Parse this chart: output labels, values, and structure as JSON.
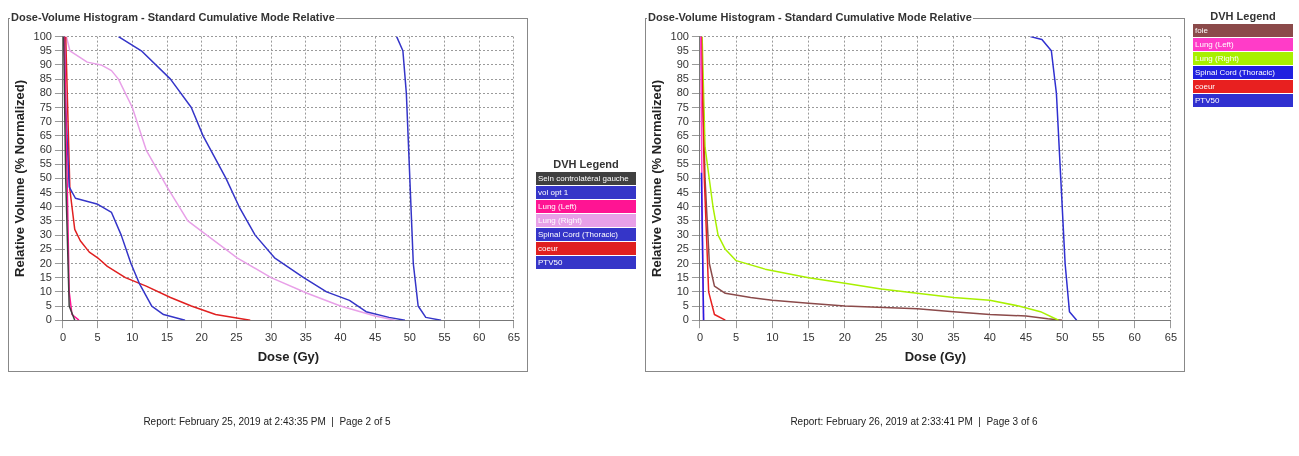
{
  "chart_data": [
    {
      "type": "line",
      "title": "Dose-Volume Histogram - Standard Cumulative Mode Relative",
      "xlabel": "Dose (Gy)",
      "ylabel": "Relative Volume (% Normalized)",
      "legend_title": "DVH Legend",
      "legend": "right",
      "grid": true,
      "xlim": [
        0,
        65
      ],
      "xticks": [
        0,
        5,
        10,
        15,
        20,
        25,
        30,
        35,
        40,
        45,
        50,
        55,
        60,
        65
      ],
      "ylim": [
        0,
        100
      ],
      "yticks": [
        0,
        5,
        10,
        15,
        20,
        25,
        30,
        35,
        40,
        45,
        50,
        55,
        60,
        65,
        70,
        75,
        80,
        85,
        90,
        95,
        100
      ],
      "annotations": [
        "Report: February 25, 2019 at 2:43:35 PM  |  Page 2 of 5"
      ],
      "series": [
        {
          "name": "Sein controlatéral gauche",
          "color": "#404040",
          "x": [
            0.1,
            0.4,
            0.9,
            1.7
          ],
          "values": [
            100,
            50,
            5,
            0
          ]
        },
        {
          "name": "vol opt 1",
          "color": "#3535c8",
          "x": [
            8,
            11.3,
            15.5,
            18.5,
            20.2,
            23.5,
            25.4,
            27.7,
            30.5,
            34.7,
            38,
            41.3,
            43.7,
            47,
            49.3
          ],
          "values": [
            100,
            95,
            85,
            75,
            65,
            50,
            40,
            30,
            22,
            15,
            10,
            7,
            3,
            1,
            0
          ]
        },
        {
          "name": "Lung (Left)",
          "color": "#ff1493",
          "x": [
            0.2,
            0.6,
            0.9,
            1.3,
            2.3
          ],
          "values": [
            100,
            50,
            10,
            2,
            0
          ]
        },
        {
          "name": "Lung (Right)",
          "color": "#e8a0e8",
          "x": [
            0.5,
            1,
            3.5,
            5.5,
            7,
            8,
            10,
            12,
            15,
            18,
            20.2,
            25.1,
            30,
            35.2,
            40,
            45,
            47.9
          ],
          "values": [
            100,
            95,
            91,
            90,
            88,
            85,
            75,
            60,
            47,
            35,
            31,
            22,
            15,
            9.5,
            5,
            1.5,
            0
          ]
        },
        {
          "name": "Spinal Cord (Thoracic)",
          "color": "#3535c8",
          "x": [
            0.2,
            0.4,
            0.9,
            1.8,
            4.9,
            7,
            8.4,
            9.8,
            11,
            12.8,
            14.5,
            17.6
          ],
          "values": [
            100,
            75,
            47,
            43,
            41,
            38,
            30,
            20,
            13,
            5,
            2,
            0
          ]
        },
        {
          "name": "coeur",
          "color": "#e02020",
          "x": [
            0.4,
            1,
            1.7,
            2.5,
            3.8,
            5,
            6.4,
            9,
            12,
            15.5,
            18.5,
            22,
            27
          ],
          "values": [
            100,
            46,
            32,
            28,
            24,
            22,
            19,
            15,
            12,
            8,
            5,
            2,
            0
          ]
        },
        {
          "name": "PTV50",
          "color": "#3535c8",
          "x": [
            48.1,
            49,
            49.5,
            50,
            50.5,
            51.2,
            52.3,
            54.5
          ],
          "values": [
            100,
            95,
            80,
            50,
            20,
            5,
            1,
            0
          ]
        }
      ]
    },
    {
      "type": "line",
      "title": "Dose-Volume Histogram - Standard Cumulative Mode Relative",
      "xlabel": "Dose (Gy)",
      "ylabel": "Relative Volume (% Normalized)",
      "legend_title": "DVH Legend",
      "legend": "top right",
      "grid": true,
      "xlim": [
        0,
        65
      ],
      "xticks": [
        0,
        5,
        10,
        15,
        20,
        25,
        30,
        35,
        40,
        45,
        50,
        55,
        60,
        65
      ],
      "ylim": [
        0,
        100
      ],
      "yticks": [
        0,
        5,
        10,
        15,
        20,
        25,
        30,
        35,
        40,
        45,
        50,
        55,
        60,
        65,
        70,
        75,
        80,
        85,
        90,
        95,
        100
      ],
      "annotations": [
        "Report: February 26, 2019 at 2:33:41 PM  |  Page 3 of 6"
      ],
      "series": [
        {
          "name": "foie",
          "color": "#8b4a4a",
          "x": [
            0.2,
            0.7,
            1.3,
            2,
            3.5,
            7,
            10,
            15,
            20,
            30,
            35,
            40,
            45,
            48,
            50
          ],
          "values": [
            100,
            50,
            20,
            12,
            9.5,
            8,
            7,
            6,
            5,
            4,
            3,
            2,
            1.5,
            0.5,
            0
          ]
        },
        {
          "name": "Lung (Left)",
          "color": "#ff3cc8",
          "x": [
            0.1,
            0.3,
            0.5
          ],
          "values": [
            100,
            40,
            0
          ]
        },
        {
          "name": "Lung (Right)",
          "color": "#a8f000",
          "x": [
            0.3,
            0.7,
            1.8,
            2.5,
            3.5,
            5,
            9,
            15,
            20,
            25,
            30,
            35,
            40,
            44,
            47,
            49.5
          ],
          "values": [
            100,
            61,
            40,
            30,
            25,
            21,
            18,
            15,
            13,
            11,
            9.5,
            8,
            7,
            5,
            3,
            0
          ]
        },
        {
          "name": "Spinal Cord (Thoracic)",
          "color": "#2020e0",
          "x": [
            0.2,
            0.5
          ],
          "values": [
            52,
            0
          ]
        },
        {
          "name": "coeur",
          "color": "#e82020",
          "x": [
            0.2,
            0.6,
            1.2,
            2,
            3.5
          ],
          "values": [
            100,
            50,
            10,
            2,
            0
          ]
        },
        {
          "name": "PTV50",
          "color": "#3030d0",
          "x": [
            45.6,
            47.2,
            48.5,
            49.2,
            49.8,
            50.4,
            51,
            52
          ],
          "values": [
            100,
            99,
            95,
            80,
            50,
            20,
            3,
            0
          ]
        }
      ]
    }
  ]
}
